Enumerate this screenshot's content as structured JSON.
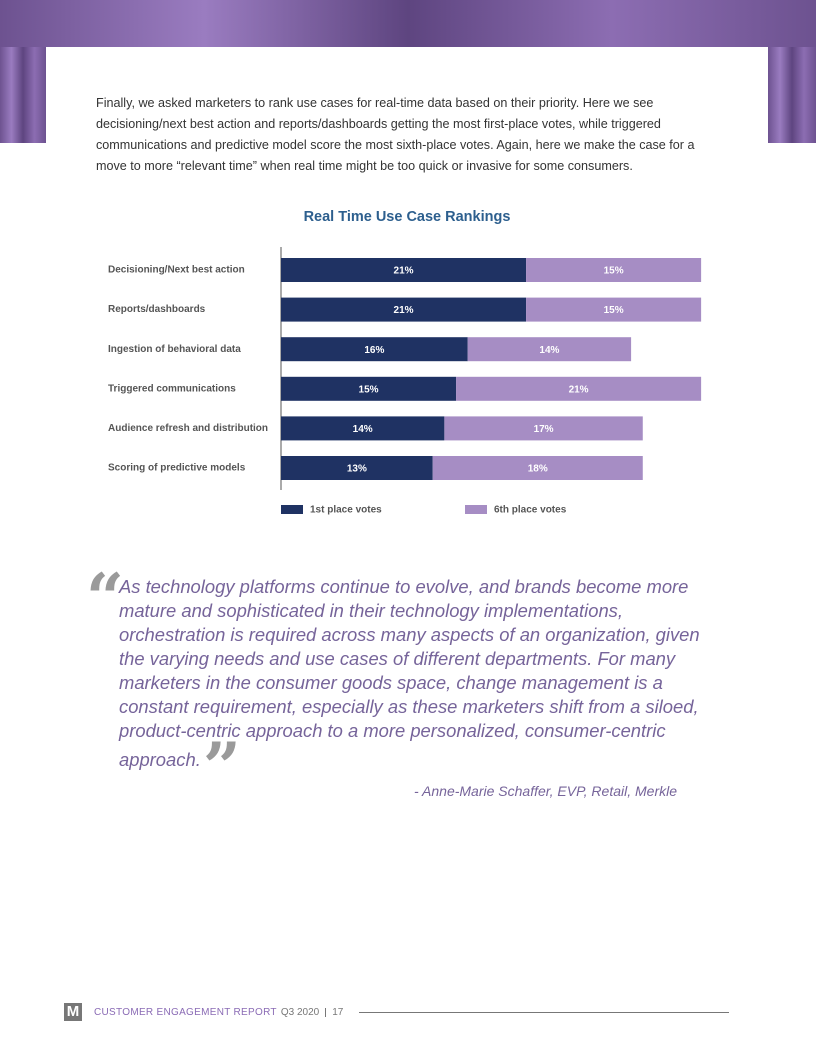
{
  "intro": "Finally, we asked marketers to rank use cases for real-time data based on their priority. Here we see decisioning/next best action and reports/dashboards getting the most first-place votes, while triggered communications and predictive model score the most sixth-place votes. Again, here we make the case for a move to more “relevant time” when real time might be too quick or invasive for some consumers.",
  "chart_data": {
    "type": "stacked-bar-horizontal",
    "title": "Real Time Use Case Rankings",
    "categories": [
      "Decisioning/Next best action",
      "Reports/dashboards",
      "Ingestion of behavioral data",
      "Triggered communications",
      "Audience refresh and distribution",
      "Scoring of predictive models"
    ],
    "series": [
      {
        "name": "1st place votes",
        "color": "#1f3263",
        "values": [
          21,
          21,
          16,
          15,
          14,
          13
        ],
        "value_labels": [
          "21%",
          "21%",
          "16%",
          "15%",
          "14%",
          "13%"
        ]
      },
      {
        "name": "6th place votes",
        "color": "#a68dc4",
        "values": [
          15,
          15,
          14,
          21,
          17,
          18
        ],
        "value_labels": [
          "15%",
          "15%",
          "14%",
          "21%",
          "17%",
          "18%"
        ]
      }
    ]
  },
  "quote": {
    "open_mark": "“",
    "text": "As technology platforms continue to evolve, and brands become more mature and sophisticated in their technology implementations, orchestration is required across many aspects of an organization, given the varying needs and use cases of different departments. For many marketers in the consumer goods space, change management is a constant requirement, especially as these marketers shift from a siloed, product-centric approach to a more personalized, consumer-centric approach.",
    "close_mark": "”",
    "attribution": "- Anne-Marie Schaffer, EVP, Retail, Merkle"
  },
  "footer": {
    "logo": "M",
    "title": "CUSTOMER ENGAGEMENT REPORT",
    "edition": "Q3 2020",
    "page": "17"
  }
}
